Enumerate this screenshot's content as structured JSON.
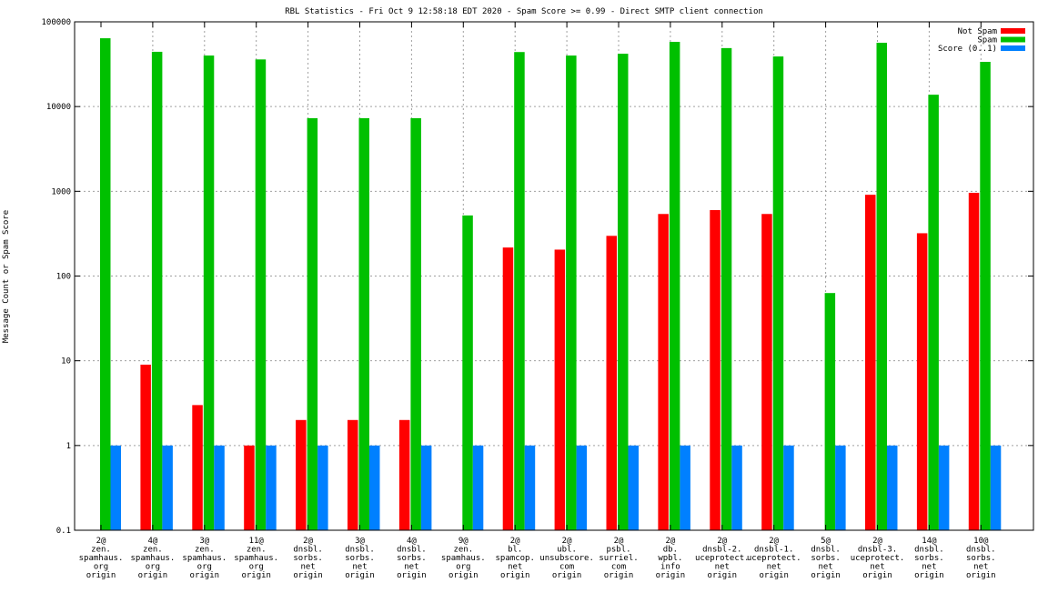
{
  "chart_data": {
    "type": "bar",
    "title": "RBL Statistics - Fri Oct  9 12:58:18 EDT 2020 - Spam Score >= 0.99 - Direct SMTP client connection",
    "xlabel": "",
    "ylabel": "Message Count or Spam Score",
    "yscale": "log",
    "ylim": [
      0.1,
      100000
    ],
    "yticks": [
      "0.1",
      "1",
      "10",
      "100",
      "1000",
      "10000",
      "100000"
    ],
    "grid": true,
    "legend_position": "top-right",
    "categories": [
      [
        "2@",
        "zen.",
        "spamhaus.",
        "org",
        "origin"
      ],
      [
        "4@",
        "zen.",
        "spamhaus.",
        "org",
        "origin"
      ],
      [
        "3@",
        "zen.",
        "spamhaus.",
        "org",
        "origin"
      ],
      [
        "11@",
        "zen.",
        "spamhaus.",
        "org",
        "origin"
      ],
      [
        "2@",
        "dnsbl.",
        "sorbs.",
        "net",
        "origin"
      ],
      [
        "3@",
        "dnsbl.",
        "sorbs.",
        "net",
        "origin"
      ],
      [
        "4@",
        "dnsbl.",
        "sorbs.",
        "net",
        "origin"
      ],
      [
        "9@",
        "zen.",
        "spamhaus.",
        "org",
        "origin"
      ],
      [
        "2@",
        "bl.",
        "spamcop.",
        "net",
        "origin"
      ],
      [
        "2@",
        "ubl.",
        "unsubscore.",
        "com",
        "origin"
      ],
      [
        "2@",
        "psbl.",
        "surriel.",
        "com",
        "origin"
      ],
      [
        "2@",
        "db.",
        "wpbl.",
        "info",
        "origin"
      ],
      [
        "2@",
        "dnsbl-2.",
        "uceprotect.",
        "net",
        "origin"
      ],
      [
        "2@",
        "dnsbl-1.",
        "uceprotect.",
        "net",
        "origin"
      ],
      [
        "5@",
        "dnsbl.",
        "sorbs.",
        "net",
        "origin"
      ],
      [
        "2@",
        "dnsbl-3.",
        "uceprotect.",
        "net",
        "origin"
      ],
      [
        "14@",
        "dnsbl.",
        "sorbs.",
        "net",
        "origin"
      ],
      [
        "10@",
        "dnsbl.",
        "sorbs.",
        "net",
        "origin"
      ]
    ],
    "series": [
      {
        "name": "Not Spam",
        "color": "#ff0000",
        "values": [
          null,
          9,
          3,
          1,
          2,
          2,
          2,
          null,
          217,
          205,
          298,
          540,
          600,
          540,
          null,
          910,
          320,
          960
        ]
      },
      {
        "name": "Spam",
        "color": "#00c000",
        "values": [
          64000,
          44300,
          40000,
          36000,
          7300,
          7300,
          7300,
          519,
          44000,
          40000,
          42000,
          58000,
          49000,
          39000,
          63,
          56600,
          13800,
          33700
        ]
      },
      {
        "name": "Score (0..1)",
        "color": "#0080ff",
        "values": [
          1,
          1,
          1,
          1,
          1,
          1,
          1,
          1,
          1,
          1,
          1,
          1,
          1,
          1,
          1,
          1,
          1,
          1
        ]
      }
    ]
  }
}
